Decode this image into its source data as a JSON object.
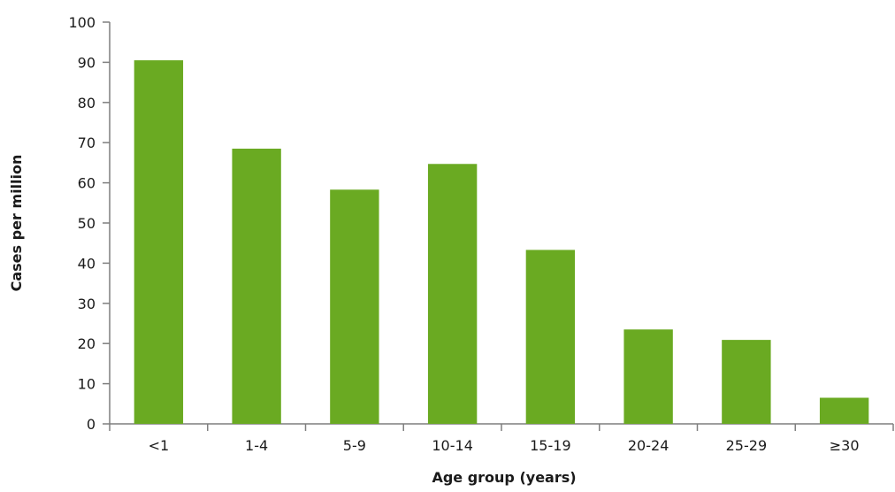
{
  "chart_data": {
    "type": "bar",
    "title": "",
    "xlabel": "Age group (years)",
    "ylabel": "Cases per million",
    "categories": [
      "<1",
      "1-4",
      "5-9",
      "10-14",
      "15-19",
      "20-24",
      "25-29",
      "≥30"
    ],
    "values": [
      90.5,
      68.5,
      58.3,
      64.7,
      43.3,
      23.5,
      20.9,
      6.5
    ],
    "ylim": [
      0,
      100
    ],
    "yticks": [
      "0",
      "10",
      "20",
      "30",
      "40",
      "50",
      "60",
      "70",
      "80",
      "90",
      "100"
    ],
    "grid": false,
    "legend": "none",
    "bar_color": "#6aaa22",
    "axis_color": "#7f7f7f"
  }
}
